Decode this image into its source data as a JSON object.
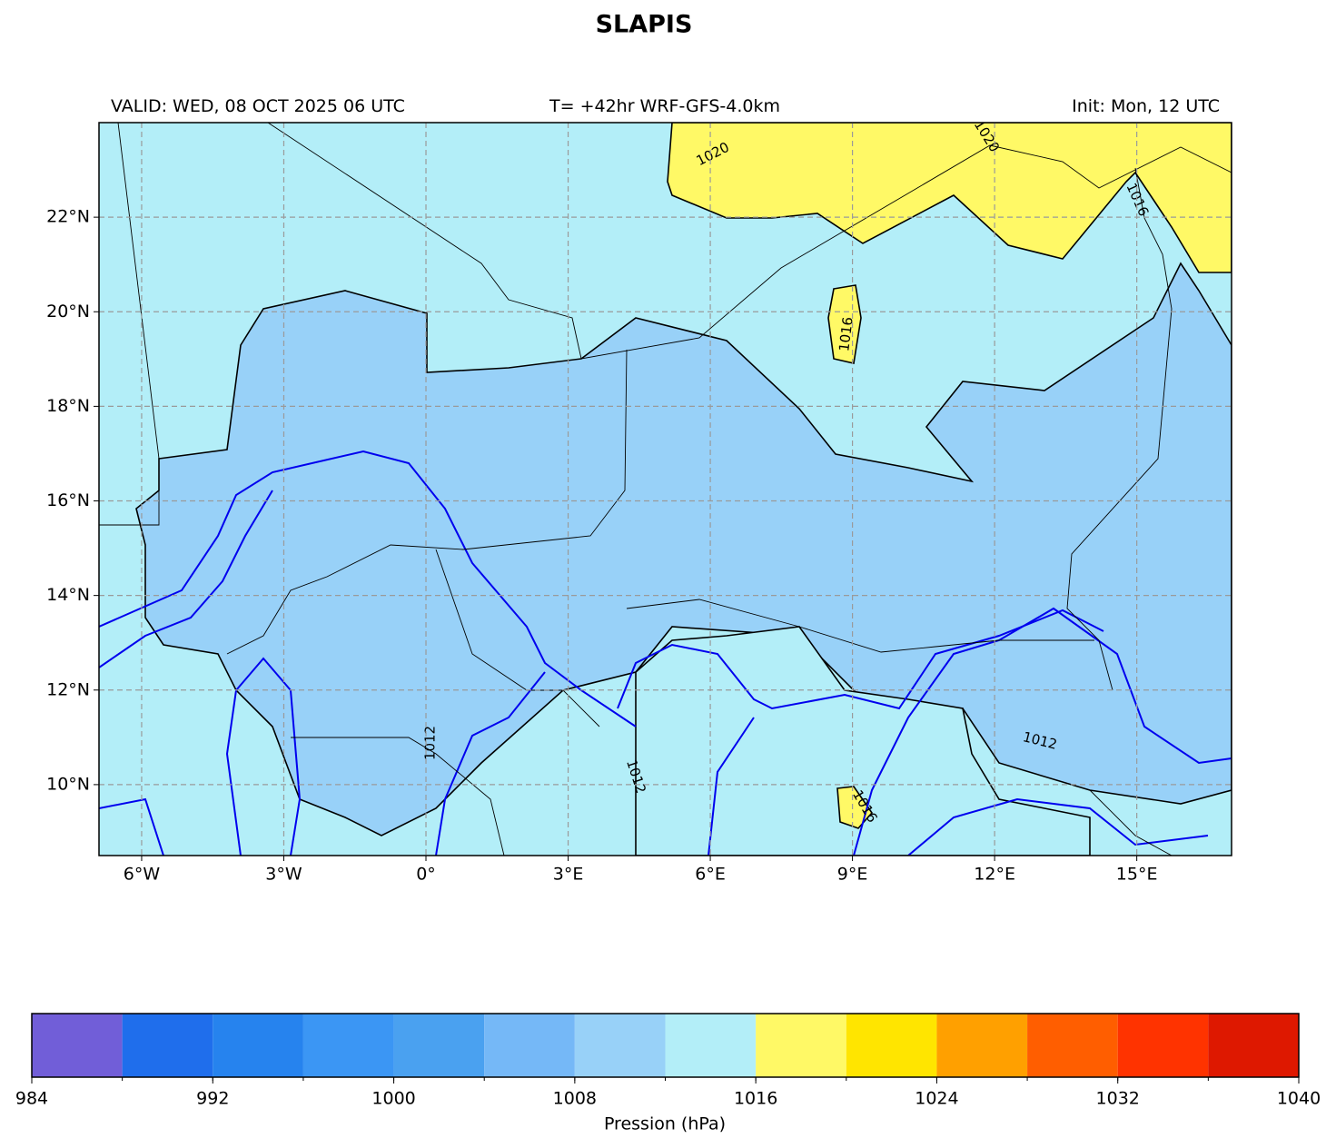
{
  "title": "SLAPIS",
  "valid": "VALID: WED, 08 OCT 2025 06 UTC",
  "run": "T= +42hr WRF-GFS-4.0km",
  "init": "Init: Mon, 12 UTC",
  "map": {
    "xlim": [
      -6.9,
      17
    ],
    "ylim": [
      8.5,
      24
    ],
    "grid": true,
    "xticks": [
      {
        "value": -6,
        "label": "6°W"
      },
      {
        "value": -3,
        "label": "3°W"
      },
      {
        "value": 0,
        "label": "0°"
      },
      {
        "value": 3,
        "label": "3°E"
      },
      {
        "value": 6,
        "label": "6°E"
      },
      {
        "value": 9,
        "label": "9°E"
      },
      {
        "value": 12,
        "label": "12°E"
      },
      {
        "value": 15,
        "label": "15°E"
      }
    ],
    "yticks": [
      {
        "value": 10,
        "label": "10°N"
      },
      {
        "value": 12,
        "label": "12°N"
      },
      {
        "value": 14,
        "label": "14°N"
      },
      {
        "value": 16,
        "label": "16°N"
      },
      {
        "value": 18,
        "label": "18°N"
      },
      {
        "value": 20,
        "label": "20°N"
      },
      {
        "value": 22,
        "label": "22°N"
      }
    ],
    "contour_labels": [
      "1020",
      "1020",
      "1016",
      "1016",
      "1012",
      "1012",
      "1012",
      "1016"
    ]
  },
  "colorbar": {
    "label": "Pression (hPa)",
    "bounds": [
      984,
      988,
      992,
      996,
      1000,
      1004,
      1008,
      1012,
      1016,
      1020,
      1024,
      1028,
      1032,
      1036,
      1040
    ],
    "colors": [
      "#715ed8",
      "#1f6eec",
      "#2683ee",
      "#3b96f4",
      "#4aa1f0",
      "#75b8f7",
      "#98d1f8",
      "#b3eef8",
      "#fff966",
      "#ffe500",
      "#ffa000",
      "#ff5e00",
      "#ff3300",
      "#de1800"
    ],
    "ticks": [
      984,
      992,
      1000,
      1008,
      1016,
      1024,
      1032,
      1040
    ]
  }
}
